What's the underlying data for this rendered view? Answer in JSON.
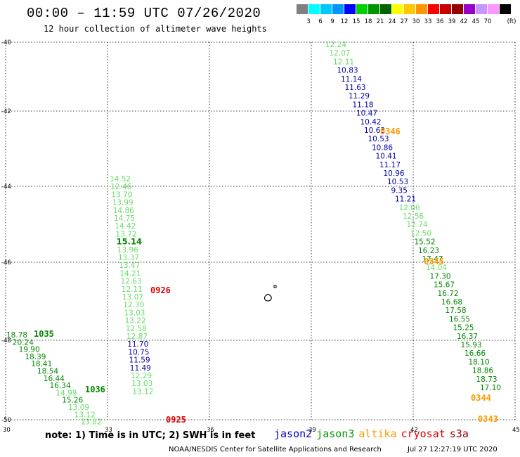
{
  "title": "00:00 – 11:59 UTC 07/26/2020",
  "subtitle": "12 hour collection of altimeter wave heights",
  "legend": {
    "items": [
      {
        "color": "#808080",
        "label": ""
      },
      {
        "color": "#00ffff",
        "label": "3"
      },
      {
        "color": "#00c8ff",
        "label": "6"
      },
      {
        "color": "#0096ff",
        "label": "9"
      },
      {
        "color": "#0000ff",
        "label": "12"
      },
      {
        "color": "#00d000",
        "label": "15"
      },
      {
        "color": "#009600",
        "label": "18"
      },
      {
        "color": "#006400",
        "label": "21"
      },
      {
        "color": "#ffff00",
        "label": "24"
      },
      {
        "color": "#ffc800",
        "label": "27"
      },
      {
        "color": "#ff9600",
        "label": "30"
      },
      {
        "color": "#ff0000",
        "label": "33"
      },
      {
        "color": "#c80000",
        "label": "36"
      },
      {
        "color": "#960000",
        "label": "39"
      },
      {
        "color": "#9600c8",
        "label": "42"
      },
      {
        "color": "#c896ff",
        "label": "45"
      },
      {
        "color": "#ff96ff",
        "label": "70"
      },
      {
        "color": "#000000",
        "label": "(ft)"
      }
    ]
  },
  "colors": {
    "light": "#66dd66",
    "blue": "#0000aa",
    "green": "#008800",
    "orange": "#ff9900",
    "red": "#dd0000"
  },
  "axes": {
    "lat_ticks": [
      "-40",
      "-42",
      "-44",
      "-46",
      "-48",
      "-50"
    ],
    "lon_ticks": [
      "30",
      "33",
      "36",
      "39",
      "42",
      "45"
    ]
  },
  "track_left": [
    {
      "v": "18.78",
      "c": "green"
    },
    {
      "v": "20.24",
      "c": "green"
    },
    {
      "v": "19.90",
      "c": "green"
    },
    {
      "v": "18.39",
      "c": "green"
    },
    {
      "v": "18.41",
      "c": "green"
    },
    {
      "v": "18.54",
      "c": "green"
    },
    {
      "v": "16.44",
      "c": "green"
    },
    {
      "v": "16.34",
      "c": "green"
    },
    {
      "v": "14.99",
      "c": "light"
    },
    {
      "v": "15.26",
      "c": "green"
    },
    {
      "v": "13.09",
      "c": "light"
    },
    {
      "v": "13.12",
      "c": "light"
    },
    {
      "v": "13.82",
      "c": "light"
    }
  ],
  "track_mid": [
    {
      "v": "14.52",
      "c": "light"
    },
    {
      "v": "12.46",
      "c": "light"
    },
    {
      "v": "13.70",
      "c": "light"
    },
    {
      "v": "13.99",
      "c": "light"
    },
    {
      "v": "14.86",
      "c": "light"
    },
    {
      "v": "14.75",
      "c": "light"
    },
    {
      "v": "14.42",
      "c": "light"
    },
    {
      "v": "13.72",
      "c": "light"
    },
    {
      "v": "15.14",
      "c": "green"
    },
    {
      "v": "13.96",
      "c": "light"
    },
    {
      "v": "13.37",
      "c": "light"
    },
    {
      "v": "13.47",
      "c": "light"
    },
    {
      "v": "14.21",
      "c": "light"
    },
    {
      "v": "12.63",
      "c": "light"
    },
    {
      "v": "12.11",
      "c": "light"
    },
    {
      "v": "13.07",
      "c": "light"
    },
    {
      "v": "12.30",
      "c": "light"
    },
    {
      "v": "13.03",
      "c": "light"
    },
    {
      "v": "13.22",
      "c": "light"
    },
    {
      "v": "12.58",
      "c": "light"
    },
    {
      "v": "12.87",
      "c": "light"
    },
    {
      "v": "11.70",
      "c": "blue"
    },
    {
      "v": "10.75",
      "c": "blue"
    },
    {
      "v": "11.59",
      "c": "blue"
    },
    {
      "v": "11.49",
      "c": "blue"
    },
    {
      "v": "12.29",
      "c": "light"
    },
    {
      "v": "13.03",
      "c": "light"
    },
    {
      "v": "13.12",
      "c": "light"
    }
  ],
  "track_right": [
    {
      "v": "12.24",
      "c": "light"
    },
    {
      "v": "12.07",
      "c": "light"
    },
    {
      "v": "12.11",
      "c": "light"
    },
    {
      "v": "10.83",
      "c": "blue"
    },
    {
      "v": "11.14",
      "c": "blue"
    },
    {
      "v": "11.63",
      "c": "blue"
    },
    {
      "v": "11.29",
      "c": "blue"
    },
    {
      "v": "11.18",
      "c": "blue"
    },
    {
      "v": "10.47",
      "c": "blue"
    },
    {
      "v": "10.42",
      "c": "blue"
    },
    {
      "v": "10.63",
      "c": "blue"
    },
    {
      "v": "10.53",
      "c": "blue"
    },
    {
      "v": "10.86",
      "c": "blue"
    },
    {
      "v": "10.41",
      "c": "blue"
    },
    {
      "v": "11.17",
      "c": "blue"
    },
    {
      "v": "10.96",
      "c": "blue"
    },
    {
      "v": "10.53",
      "c": "blue"
    },
    {
      "v": "9.35",
      "c": "blue"
    },
    {
      "v": "11.21",
      "c": "blue"
    },
    {
      "v": "12.06",
      "c": "light"
    },
    {
      "v": "12.56",
      "c": "light"
    },
    {
      "v": "12.74",
      "c": "light"
    },
    {
      "v": "12.50",
      "c": "light"
    },
    {
      "v": "15.52",
      "c": "green"
    },
    {
      "v": "16.23",
      "c": "green"
    },
    {
      "v": "17.47",
      "c": "green"
    },
    {
      "v": "14.04",
      "c": "light"
    },
    {
      "v": "17.30",
      "c": "green"
    },
    {
      "v": "15.67",
      "c": "green"
    },
    {
      "v": "16.72",
      "c": "green"
    },
    {
      "v": "16.68",
      "c": "green"
    },
    {
      "v": "17.58",
      "c": "green"
    },
    {
      "v": "16.55",
      "c": "green"
    },
    {
      "v": "15.25",
      "c": "green"
    },
    {
      "v": "16.37",
      "c": "green"
    },
    {
      "v": "15.93",
      "c": "green"
    },
    {
      "v": "16.66",
      "c": "green"
    },
    {
      "v": "18.10",
      "c": "green"
    },
    {
      "v": "18.86",
      "c": "green"
    },
    {
      "v": "18.73",
      "c": "green"
    },
    {
      "v": "17.10",
      "c": "green"
    }
  ],
  "times": [
    {
      "t": "1035",
      "c": "green"
    },
    {
      "t": "1036",
      "c": "green"
    },
    {
      "t": "0926",
      "c": "red"
    },
    {
      "t": "0925",
      "c": "red"
    },
    {
      "t": "0346",
      "c": "orange"
    },
    {
      "t": "0345",
      "c": "orange"
    },
    {
      "t": "0344",
      "c": "orange"
    },
    {
      "t": "0343",
      "c": "orange"
    }
  ],
  "note": "note: 1) Time is in UTC; 2) SWH is in feet",
  "satellites": [
    {
      "name": "jason2",
      "color": "#0000cc"
    },
    {
      "name": "jason3",
      "color": "#009900"
    },
    {
      "name": "altika",
      "color": "#ff9900"
    },
    {
      "name": "cryosat",
      "color": "#dd0000"
    },
    {
      "name": "s3a",
      "color": "#990000"
    }
  ],
  "footer": "NOAA/NESDIS Center for Satellite Applications and Research",
  "timestamp": "Jul 27 12:27:19 UTC 2020"
}
